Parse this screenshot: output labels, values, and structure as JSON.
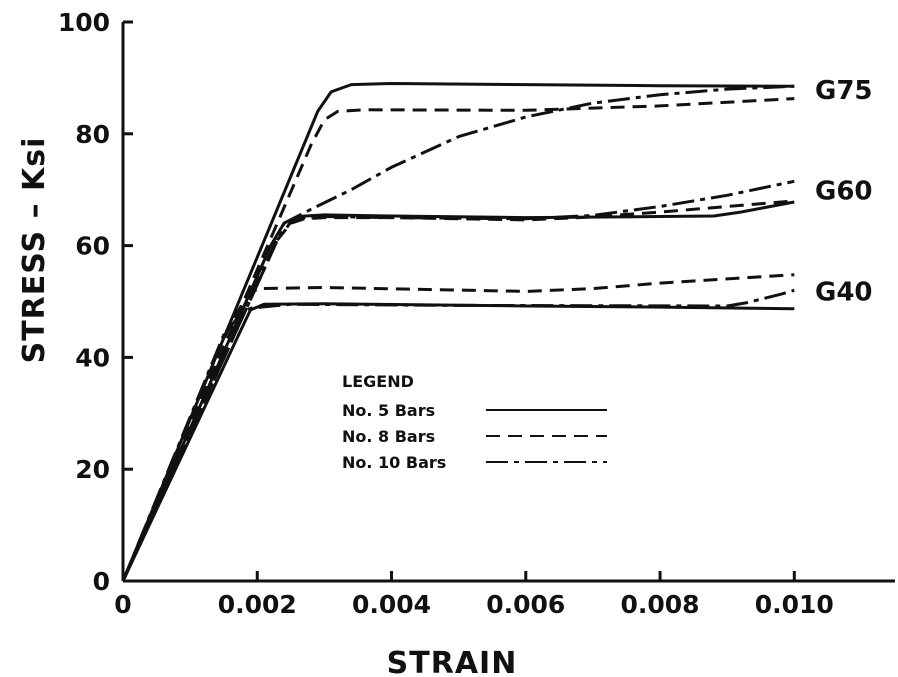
{
  "chart_data": {
    "type": "line",
    "xlabel": "STRAIN",
    "ylabel": "STRESS – Ksi",
    "xlim": [
      0,
      0.0115
    ],
    "ylim": [
      0,
      100
    ],
    "x_ticks": [
      0,
      0.002,
      0.004,
      0.006,
      0.008,
      0.01
    ],
    "x_tick_labels": [
      "0",
      "0.002",
      "0.004",
      "0.006",
      "0.008",
      "0.010"
    ],
    "y_ticks": [
      0,
      20,
      40,
      60,
      80,
      100
    ],
    "y_tick_labels": [
      "0",
      "20",
      "40",
      "60",
      "80",
      "100"
    ],
    "grid": false,
    "legend": {
      "title": "LEGEND",
      "placement": "center",
      "entries": [
        {
          "label": "No.  5  Bars",
          "style": "solid"
        },
        {
          "label": "No.  8  Bars",
          "style": "dashed"
        },
        {
          "label": "No.  10 Bars",
          "style": "dashdot"
        }
      ]
    },
    "grade_labels": [
      {
        "text": "G75",
        "y": 88
      },
      {
        "text": "G60",
        "y": 70
      },
      {
        "text": "G40",
        "y": 52
      }
    ],
    "series": [
      {
        "grade": "G75",
        "style": "solid",
        "points": [
          [
            0,
            0
          ],
          [
            0.0029,
            84
          ],
          [
            0.0031,
            87.5
          ],
          [
            0.0034,
            88.8
          ],
          [
            0.004,
            89
          ],
          [
            0.006,
            88.8
          ],
          [
            0.008,
            88.6
          ],
          [
            0.01,
            88.5
          ]
        ]
      },
      {
        "grade": "G75",
        "style": "dashed",
        "points": [
          [
            0,
            0
          ],
          [
            0.0028,
            78
          ],
          [
            0.003,
            82.5
          ],
          [
            0.0032,
            84
          ],
          [
            0.0036,
            84.3
          ],
          [
            0.006,
            84.2
          ],
          [
            0.008,
            85
          ],
          [
            0.01,
            86.3
          ]
        ]
      },
      {
        "grade": "G75",
        "style": "dashdot",
        "points": [
          [
            0,
            0
          ],
          [
            0.0024,
            64
          ],
          [
            0.0028,
            66.5
          ],
          [
            0.0034,
            70
          ],
          [
            0.004,
            74
          ],
          [
            0.005,
            79.5
          ],
          [
            0.006,
            83
          ],
          [
            0.007,
            85.5
          ],
          [
            0.008,
            87
          ],
          [
            0.009,
            88
          ],
          [
            0.01,
            88.5
          ]
        ]
      },
      {
        "grade": "G60",
        "style": "solid",
        "points": [
          [
            0,
            0
          ],
          [
            0.0022,
            60
          ],
          [
            0.0024,
            64
          ],
          [
            0.0026,
            65.2
          ],
          [
            0.003,
            65.5
          ],
          [
            0.004,
            65.3
          ],
          [
            0.006,
            65
          ],
          [
            0.008,
            65.2
          ],
          [
            0.0088,
            65.3
          ],
          [
            0.0092,
            66
          ],
          [
            0.01,
            67.8
          ]
        ]
      },
      {
        "grade": "G60",
        "style": "dashed",
        "points": [
          [
            0,
            0
          ],
          [
            0.0023,
            61
          ],
          [
            0.0025,
            64
          ],
          [
            0.0027,
            64.8
          ],
          [
            0.003,
            65
          ],
          [
            0.004,
            65
          ],
          [
            0.006,
            64.6
          ],
          [
            0.0068,
            65
          ],
          [
            0.008,
            66
          ],
          [
            0.01,
            68
          ]
        ]
      },
      {
        "grade": "G60",
        "style": "dashdot",
        "points": [
          [
            0,
            0
          ],
          [
            0.0023,
            61
          ],
          [
            0.0025,
            64.2
          ],
          [
            0.0027,
            65
          ],
          [
            0.003,
            65.2
          ],
          [
            0.004,
            65
          ],
          [
            0.006,
            64.8
          ],
          [
            0.007,
            65.4
          ],
          [
            0.008,
            67
          ],
          [
            0.009,
            69
          ],
          [
            0.01,
            71.5
          ]
        ]
      },
      {
        "grade": "G40",
        "style": "solid",
        "points": [
          [
            0,
            0
          ],
          [
            0.0018,
            46
          ],
          [
            0.0019,
            48.5
          ],
          [
            0.0021,
            49.5
          ],
          [
            0.003,
            49.6
          ],
          [
            0.006,
            49.2
          ],
          [
            0.008,
            49
          ],
          [
            0.01,
            48.7
          ]
        ]
      },
      {
        "grade": "G40",
        "style": "dashed",
        "points": [
          [
            0,
            0
          ],
          [
            0.0016,
            46
          ],
          [
            0.0018,
            50
          ],
          [
            0.002,
            52.3
          ],
          [
            0.003,
            52.5
          ],
          [
            0.006,
            51.8
          ],
          [
            0.007,
            52.3
          ],
          [
            0.008,
            53.3
          ],
          [
            0.01,
            54.8
          ]
        ]
      },
      {
        "grade": "G40",
        "style": "dashdot",
        "points": [
          [
            0,
            0
          ],
          [
            0.0015,
            44
          ],
          [
            0.0017,
            47
          ],
          [
            0.0019,
            48.8
          ],
          [
            0.0025,
            49.5
          ],
          [
            0.005,
            49.3
          ],
          [
            0.009,
            49.2
          ],
          [
            0.0093,
            49.8
          ],
          [
            0.0098,
            51.3
          ],
          [
            0.01,
            52
          ]
        ]
      }
    ]
  }
}
